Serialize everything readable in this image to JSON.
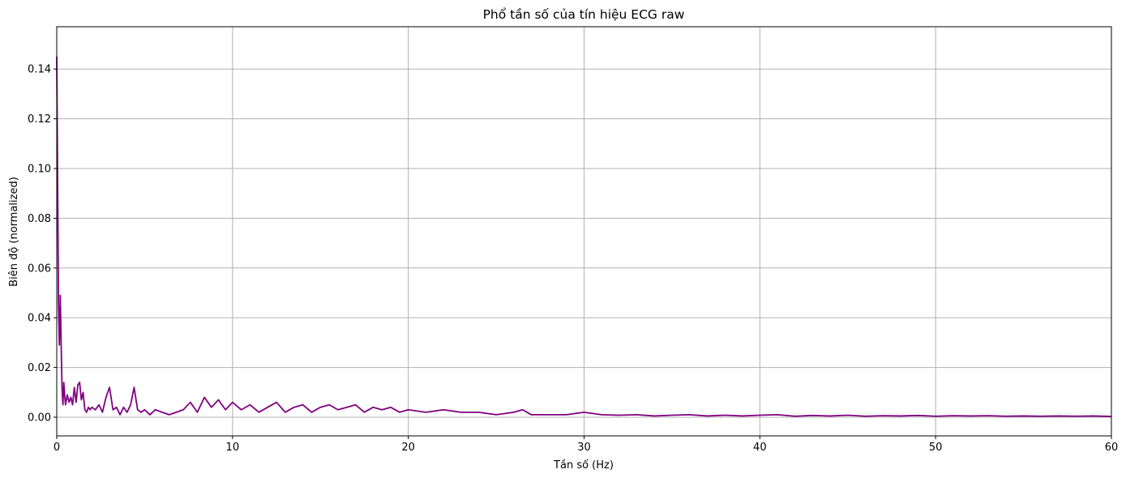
{
  "chart_data": {
    "type": "line",
    "title": "Phổ tần số của tín hiệu ECG raw",
    "xlabel": "Tần số (Hz)",
    "ylabel": "Biên độ (normalized)",
    "xlim": [
      0,
      60
    ],
    "ylim": [
      -0.0075,
      0.157
    ],
    "xticks": [
      0,
      10,
      20,
      30,
      40,
      50,
      60
    ],
    "xtick_labels": [
      "0",
      "10",
      "20",
      "30",
      "40",
      "50",
      "60"
    ],
    "yticks": [
      0.0,
      0.02,
      0.04,
      0.06,
      0.08,
      0.1,
      0.12,
      0.14
    ],
    "ytick_labels": [
      "0.00",
      "0.02",
      "0.04",
      "0.06",
      "0.08",
      "0.10",
      "0.12",
      "0.14"
    ],
    "grid": true,
    "line_color": "#800080",
    "series": [
      {
        "x": [
          0,
          0.05,
          0.1,
          0.15,
          0.2,
          0.25,
          0.3,
          0.35,
          0.4,
          0.45,
          0.5,
          0.6,
          0.7,
          0.8,
          0.9,
          1.0,
          1.1,
          1.2,
          1.3,
          1.4,
          1.5,
          1.6,
          1.7,
          1.8,
          1.9,
          2.0,
          2.2,
          2.4,
          2.6,
          2.8,
          3.0,
          3.2,
          3.4,
          3.6,
          3.8,
          4.0,
          4.2,
          4.4,
          4.6,
          4.8,
          5.0,
          5.3,
          5.6,
          6.0,
          6.4,
          6.8,
          7.2,
          7.6,
          8.0,
          8.4,
          8.8,
          9.2,
          9.6,
          10.0,
          10.5,
          11.0,
          11.5,
          12.0,
          12.5,
          13.0,
          13.5,
          14.0,
          14.5,
          15.0,
          15.5,
          16.0,
          16.5,
          17.0,
          17.5,
          18.0,
          18.5,
          19.0,
          19.5,
          20.0,
          21.0,
          22.0,
          23.0,
          24.0,
          25.0,
          26.0,
          26.5,
          27.0,
          28.0,
          29.0,
          30.0,
          31.0,
          32.0,
          33.0,
          34.0,
          35.0,
          36.0,
          37.0,
          38.0,
          39.0,
          40.0,
          41.0,
          42.0,
          43.0,
          44.0,
          45.0,
          46.0,
          47.0,
          48.0,
          49.0,
          50.0,
          51.0,
          52.0,
          53.0,
          54.0,
          55.0,
          56.0,
          57.0,
          58.0,
          59.0,
          60.0
        ],
        "y": [
          0.145,
          0.095,
          0.045,
          0.029,
          0.049,
          0.03,
          0.012,
          0.005,
          0.014,
          0.009,
          0.005,
          0.009,
          0.006,
          0.008,
          0.005,
          0.012,
          0.006,
          0.013,
          0.014,
          0.007,
          0.01,
          0.003,
          0.002,
          0.004,
          0.003,
          0.004,
          0.003,
          0.005,
          0.002,
          0.008,
          0.012,
          0.003,
          0.004,
          0.001,
          0.004,
          0.002,
          0.005,
          0.012,
          0.003,
          0.002,
          0.003,
          0.001,
          0.003,
          0.002,
          0.001,
          0.002,
          0.003,
          0.006,
          0.002,
          0.008,
          0.004,
          0.007,
          0.003,
          0.006,
          0.003,
          0.005,
          0.002,
          0.004,
          0.006,
          0.002,
          0.004,
          0.005,
          0.002,
          0.004,
          0.005,
          0.003,
          0.004,
          0.005,
          0.002,
          0.004,
          0.003,
          0.004,
          0.002,
          0.003,
          0.002,
          0.003,
          0.002,
          0.002,
          0.001,
          0.002,
          0.003,
          0.001,
          0.001,
          0.001,
          0.002,
          0.001,
          0.0008,
          0.001,
          0.0005,
          0.0008,
          0.001,
          0.0005,
          0.0008,
          0.0005,
          0.0008,
          0.001,
          0.0004,
          0.0007,
          0.0005,
          0.0008,
          0.0004,
          0.0006,
          0.0005,
          0.0007,
          0.0004,
          0.0006,
          0.0005,
          0.0006,
          0.0004,
          0.0005,
          0.0004,
          0.0005,
          0.0004,
          0.0005,
          0.0003
        ]
      }
    ]
  }
}
